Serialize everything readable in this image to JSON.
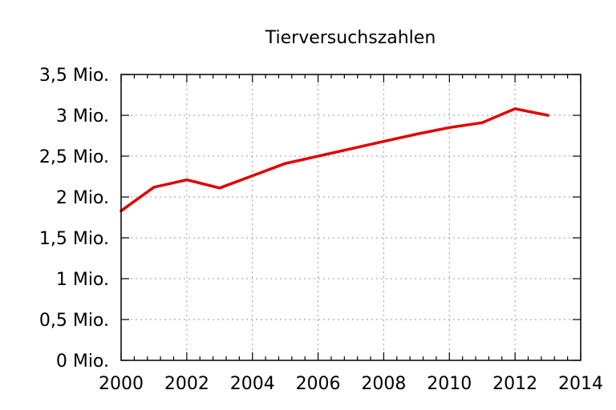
{
  "chart_data": {
    "type": "line",
    "title": "Tierversuchszahlen",
    "xlabel": "",
    "ylabel": "",
    "xlim": [
      2000,
      2014
    ],
    "ylim": [
      0,
      3500000
    ],
    "x_ticks": [
      2000,
      2002,
      2004,
      2006,
      2008,
      2010,
      2012,
      2014
    ],
    "x_tick_labels": [
      "2000",
      "2002",
      "2004",
      "2006",
      "2008",
      "2010",
      "2012",
      "2014"
    ],
    "y_ticks": [
      0,
      500000,
      1000000,
      1500000,
      2000000,
      2500000,
      3000000,
      3500000
    ],
    "y_tick_labels": [
      "0 Mio.",
      "0,5 Mio.",
      "1 Mio.",
      "1,5 Mio.",
      "2 Mio.",
      "2,5 Mio.",
      "3 Mio.",
      "3,5 Mio."
    ],
    "grid": true,
    "series": [
      {
        "color": "#e00000",
        "x": [
          2000,
          2001,
          2002,
          2003,
          2004,
          2005,
          2006,
          2007,
          2008,
          2009,
          2010,
          2011,
          2012,
          2013
        ],
        "values": [
          1830000,
          2120000,
          2210000,
          2110000,
          2260000,
          2410000,
          2500000,
          2590000,
          2680000,
          2770000,
          2850000,
          2910000,
          3080000,
          3000000
        ]
      }
    ]
  }
}
